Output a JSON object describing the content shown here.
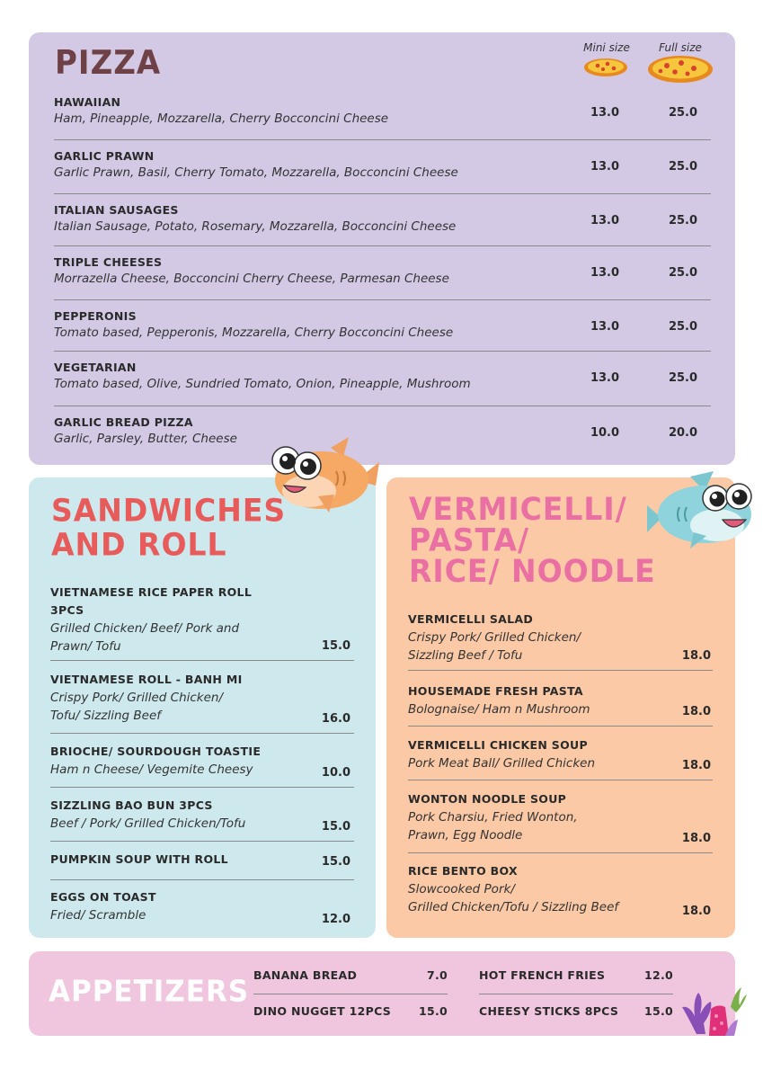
{
  "pizza": {
    "title": "PIZZA",
    "mini_label": "Mini size",
    "full_label": "Full size",
    "items": [
      {
        "name": "HAWAIIAN",
        "desc": "Ham, Pineapple, Mozzarella, Cherry Bocconcini Cheese",
        "mini": "13.0",
        "full": "25.0"
      },
      {
        "name": "GARLIC PRAWN",
        "desc": "Garlic Prawn, Basil, Cherry Tomato, Mozzarella, Bocconcini Cheese",
        "mini": "13.0",
        "full": "25.0"
      },
      {
        "name": "ITALIAN SAUSAGES",
        "desc": "Italian Sausage, Potato, Rosemary, Mozzarella, Bocconcini Cheese",
        "mini": "13.0",
        "full": "25.0"
      },
      {
        "name": "TRIPLE CHEESES",
        "desc": "Morrazella Cheese, Bocconcini Cherry Cheese, Parmesan Cheese",
        "mini": "13.0",
        "full": "25.0"
      },
      {
        "name": "PEPPERONIS",
        "desc": "Tomato based, Pepperonis, Mozzarella, Cherry Bocconcini Cheese",
        "mini": "13.0",
        "full": "25.0"
      },
      {
        "name": "VEGETARIAN",
        "desc": "Tomato based, Olive, Sundried Tomato, Onion, Pineapple, Mushroom",
        "mini": "13.0",
        "full": "25.0"
      },
      {
        "name": "GARLIC BREAD PIZZA",
        "desc": "Garlic, Parsley, Butter, Cheese",
        "mini": "10.0",
        "full": "20.0"
      }
    ]
  },
  "sandwiches": {
    "title_line1": "SANDWICHES",
    "title_line2": "AND ROLL",
    "items": [
      {
        "name1": "VIETNAMESE RICE PAPER ROLL",
        "name2": "3PCS",
        "desc1": "Grilled Chicken/ Beef/ Pork and",
        "desc2": "Prawn/ Tofu",
        "price": "15.0"
      },
      {
        "name1": "VIETNAMESE ROLL - BANH MI",
        "desc1": "Crispy Pork/ Grilled Chicken/",
        "desc2": "Tofu/ Sizzling Beef",
        "price": "16.0"
      },
      {
        "name1": "BRIOCHE/ SOURDOUGH TOASTIE",
        "desc1": "Ham n Cheese/ Vegemite Cheesy",
        "price": "10.0"
      },
      {
        "name1": "SIZZLING BAO BUN 3PCS",
        "desc1": "Beef / Pork/ Grilled Chicken/Tofu",
        "price": "15.0"
      },
      {
        "name1": "PUMPKIN SOUP WITH ROLL",
        "price": "15.0"
      },
      {
        "name1": "EGGS ON TOAST",
        "desc1": "Fried/ Scramble",
        "price": "12.0"
      }
    ]
  },
  "vermicelli": {
    "title_line1": "VERMICELLI/",
    "title_line2": "PASTA/",
    "title_line3": "RICE/ NOODLE",
    "items": [
      {
        "name": "VERMICELLI SALAD",
        "desc1": "Crispy Pork/ Grilled Chicken/",
        "desc2": "Sizzling Beef / Tofu",
        "price": "18.0"
      },
      {
        "name": "HOUSEMADE FRESH PASTA",
        "desc1": "Bolognaise/ Ham n Mushroom",
        "price": "18.0"
      },
      {
        "name": "VERMICELLI CHICKEN SOUP",
        "desc1": "Pork Meat Ball/ Grilled Chicken",
        "price": "18.0"
      },
      {
        "name": "WONTON NOODLE SOUP",
        "desc1": "Pork Charsiu, Fried Wonton,",
        "desc2": "Prawn, Egg Noodle",
        "price": "18.0"
      },
      {
        "name": "RICE BENTO BOX",
        "desc1": "Slowcooked Pork/",
        "desc2": "Grilled Chicken/Tofu / Sizzling Beef",
        "price": "18.0"
      }
    ]
  },
  "appetizers": {
    "title": "APPETIZERS",
    "items": [
      {
        "name": "BANANA BREAD",
        "price": "7.0"
      },
      {
        "name": "DINO NUGGET 12PCS",
        "price": "15.0"
      },
      {
        "name": "HOT FRENCH FRIES",
        "price": "12.0"
      },
      {
        "name": "CHEESY STICKS 8PCS",
        "price": "15.0"
      }
    ]
  }
}
